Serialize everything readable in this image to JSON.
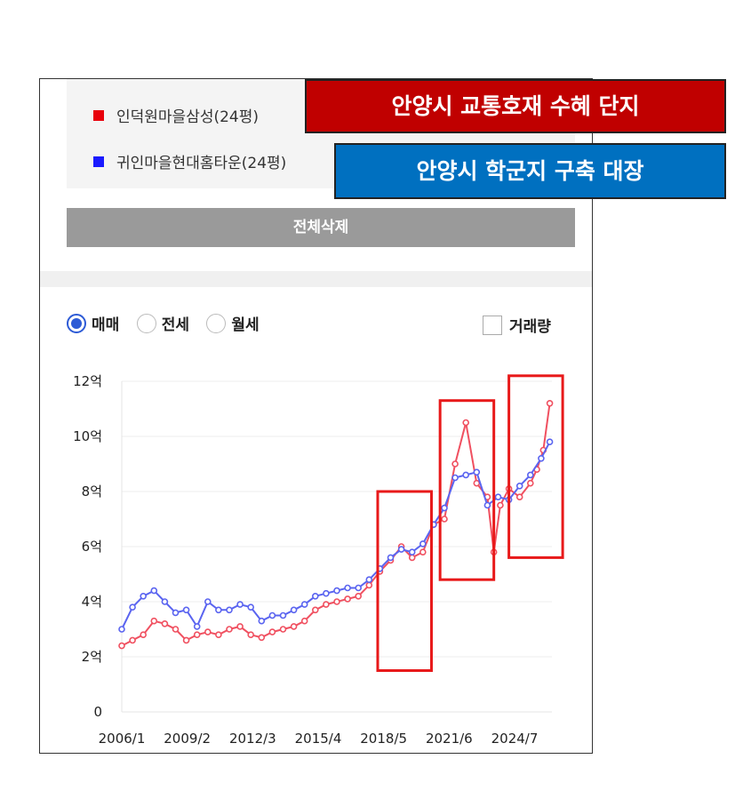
{
  "legend": {
    "items": [
      {
        "label": "인덕원마을삼성(24평)",
        "color": "#e8000b"
      },
      {
        "label": "귀인마을현대홈타운(24평)",
        "color": "#1a1aff"
      }
    ]
  },
  "delete_all_label": "전체삭제",
  "trade_types": {
    "options": [
      "매매",
      "전세",
      "월세"
    ],
    "selected": "매매"
  },
  "volume_label": "거래량",
  "volume_checked": false,
  "banners": {
    "red": "안양시 교통호재 수혜 단지",
    "blue": "안양시 학군지 구축 대장"
  },
  "colors": {
    "red_series": "#f05060",
    "blue_series": "#5a64f0",
    "highlight_box": "#e8191a"
  },
  "chart_data": {
    "type": "line",
    "x_tick_labels": [
      "2006/1",
      "2009/2",
      "2012/3",
      "2015/4",
      "2018/5",
      "2021/6",
      "2024/7"
    ],
    "y_tick_labels": [
      "0",
      "2억",
      "4억",
      "6억",
      "8억",
      "10억",
      "12억"
    ],
    "xlim": [
      2006.0,
      2026.0
    ],
    "ylim": [
      0,
      12
    ],
    "grid": true,
    "series": [
      {
        "name": "인덕원마을삼성(24평)",
        "color": "#f05060",
        "x": [
          2006.0,
          2006.5,
          2007.0,
          2007.5,
          2008.0,
          2008.5,
          2009.0,
          2009.5,
          2010.0,
          2010.5,
          2011.0,
          2011.5,
          2012.0,
          2012.5,
          2013.0,
          2013.5,
          2014.0,
          2014.5,
          2015.0,
          2015.5,
          2016.0,
          2016.5,
          2017.0,
          2017.5,
          2018.0,
          2018.5,
          2019.0,
          2019.5,
          2020.0,
          2020.5,
          2021.0,
          2021.5,
          2022.0,
          2022.5,
          2023.0,
          2023.3,
          2023.6,
          2024.0,
          2024.5,
          2025.0,
          2025.3,
          2025.6,
          2025.9
        ],
        "values": [
          2.4,
          2.6,
          2.8,
          3.3,
          3.2,
          3.0,
          2.6,
          2.8,
          2.9,
          2.8,
          3.0,
          3.1,
          2.8,
          2.7,
          2.9,
          3.0,
          3.1,
          3.3,
          3.7,
          3.9,
          4.0,
          4.1,
          4.2,
          4.6,
          5.1,
          5.5,
          6.0,
          5.6,
          5.8,
          6.8,
          7.0,
          9.0,
          10.5,
          8.3,
          7.8,
          5.8,
          7.5,
          8.1,
          7.8,
          8.3,
          8.8,
          9.5,
          11.2
        ]
      },
      {
        "name": "귀인마을현대홈타운(24평)",
        "color": "#5a64f0",
        "x": [
          2006.0,
          2006.5,
          2007.0,
          2007.5,
          2008.0,
          2008.5,
          2009.0,
          2009.5,
          2010.0,
          2010.5,
          2011.0,
          2011.5,
          2012.0,
          2012.5,
          2013.0,
          2013.5,
          2014.0,
          2014.5,
          2015.0,
          2015.5,
          2016.0,
          2016.5,
          2017.0,
          2017.5,
          2018.0,
          2018.5,
          2019.0,
          2019.5,
          2020.0,
          2020.5,
          2021.0,
          2021.5,
          2022.0,
          2022.5,
          2023.0,
          2023.5,
          2024.0,
          2024.5,
          2025.0,
          2025.5,
          2025.9
        ],
        "values": [
          3.0,
          3.8,
          4.2,
          4.4,
          4.0,
          3.6,
          3.7,
          3.1,
          4.0,
          3.7,
          3.7,
          3.9,
          3.8,
          3.3,
          3.5,
          3.5,
          3.7,
          3.9,
          4.2,
          4.3,
          4.4,
          4.5,
          4.5,
          4.8,
          5.2,
          5.6,
          5.9,
          5.8,
          6.1,
          6.8,
          7.4,
          8.5,
          8.6,
          8.7,
          7.5,
          7.8,
          7.7,
          8.2,
          8.6,
          9.2,
          9.8
        ]
      }
    ],
    "highlights": [
      {
        "x_range": [
          2017.9,
          2020.4
        ],
        "y_range": [
          1.5,
          8.0
        ]
      },
      {
        "x_range": [
          2020.8,
          2023.3
        ],
        "y_range": [
          4.8,
          11.3
        ]
      },
      {
        "x_range": [
          2024.0,
          2026.5
        ],
        "y_range": [
          5.6,
          12.2
        ]
      }
    ]
  }
}
